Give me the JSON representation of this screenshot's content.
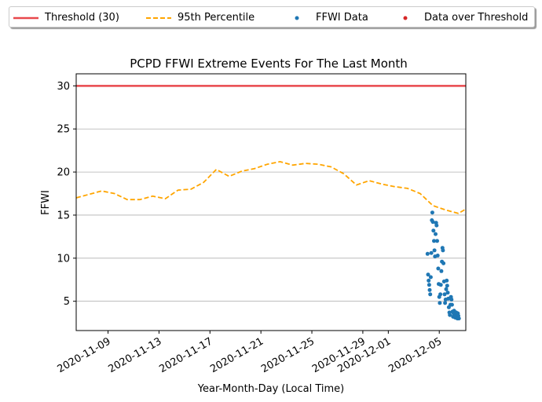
{
  "chart_data": {
    "type": "line",
    "title": "PCPD FFWI Extreme Events For The Last Month",
    "xlabel": "Year-Month-Day (Local Time)",
    "ylabel": "FFWI",
    "xlim": [
      "2020-11-06T12:00",
      "2020-12-07T02:00"
    ],
    "ylim": [
      1.6,
      31.4
    ],
    "yticks": [
      5,
      10,
      15,
      20,
      25,
      30
    ],
    "xticks": [
      "2020-11-09",
      "2020-11-13",
      "2020-11-17",
      "2020-11-21",
      "2020-11-25",
      "2020-11-29",
      "2020-12-01",
      "2020-12-05"
    ],
    "grid": "y",
    "legend": {
      "position": "top",
      "entries": [
        {
          "label": "Threshold (30)",
          "color": "#e8484c",
          "style": "solid-line"
        },
        {
          "label": "95th Percentile",
          "color": "#ffa500",
          "style": "dashed-line"
        },
        {
          "label": "FFWI Data",
          "color": "#1f77b4",
          "style": "dot"
        },
        {
          "label": "Data over Threshold",
          "color": "#d62728",
          "style": "dot"
        }
      ]
    },
    "threshold": {
      "name": "Threshold (30)",
      "value": 30,
      "color": "#e8484c"
    },
    "percentile95": {
      "name": "95th Percentile",
      "color": "#ffa500",
      "points": [
        [
          "2020-11-06T12:00",
          17.0
        ],
        [
          "2020-11-07T12:00",
          17.4
        ],
        [
          "2020-11-08T12:00",
          17.8
        ],
        [
          "2020-11-09T12:00",
          17.5
        ],
        [
          "2020-11-10T12:00",
          16.8
        ],
        [
          "2020-11-11T12:00",
          16.8
        ],
        [
          "2020-11-12T12:00",
          17.2
        ],
        [
          "2020-11-13T12:00",
          16.9
        ],
        [
          "2020-11-14T12:00",
          17.9
        ],
        [
          "2020-11-15T12:00",
          18.0
        ],
        [
          "2020-11-16T12:00",
          18.8
        ],
        [
          "2020-11-17T12:00",
          20.3
        ],
        [
          "2020-11-18T12:00",
          19.5
        ],
        [
          "2020-11-19T12:00",
          20.1
        ],
        [
          "2020-11-20T12:00",
          20.4
        ],
        [
          "2020-11-21T12:00",
          20.9
        ],
        [
          "2020-11-22T12:00",
          21.2
        ],
        [
          "2020-11-23T12:00",
          20.8
        ],
        [
          "2020-11-24T12:00",
          21.0
        ],
        [
          "2020-11-25T12:00",
          20.9
        ],
        [
          "2020-11-26T12:00",
          20.6
        ],
        [
          "2020-11-27T12:00",
          19.8
        ],
        [
          "2020-11-28T12:00",
          18.5
        ],
        [
          "2020-11-29T12:00",
          19.0
        ],
        [
          "2020-11-30T12:00",
          18.6
        ],
        [
          "2020-12-01T12:00",
          18.3
        ],
        [
          "2020-12-02T12:00",
          18.1
        ],
        [
          "2020-12-03T12:00",
          17.5
        ],
        [
          "2020-12-04T12:00",
          16.1
        ],
        [
          "2020-12-05T12:00",
          15.6
        ],
        [
          "2020-12-06T12:00",
          15.2
        ],
        [
          "2020-12-07T02:00",
          15.7
        ]
      ]
    },
    "ffwi_data": {
      "name": "FFWI Data",
      "color": "#1f77b4",
      "points": [
        [
          "2020-12-04T02:00",
          10.5
        ],
        [
          "2020-12-04T03:00",
          8.1
        ],
        [
          "2020-12-04T04:00",
          7.4
        ],
        [
          "2020-12-04T05:00",
          6.9
        ],
        [
          "2020-12-04T06:00",
          6.3
        ],
        [
          "2020-12-04T07:00",
          5.8
        ],
        [
          "2020-12-04T08:00",
          7.8
        ],
        [
          "2020-12-04T09:00",
          10.6
        ],
        [
          "2020-12-04T10:00",
          14.4
        ],
        [
          "2020-12-04T11:00",
          15.3
        ],
        [
          "2020-12-04T12:00",
          14.2
        ],
        [
          "2020-12-04T13:00",
          13.2
        ],
        [
          "2020-12-04T14:00",
          12.0
        ],
        [
          "2020-12-04T15:00",
          10.9
        ],
        [
          "2020-12-04T16:00",
          10.2
        ],
        [
          "2020-12-04T17:00",
          12.8
        ],
        [
          "2020-12-04T18:00",
          14.1
        ],
        [
          "2020-12-04T19:00",
          13.8
        ],
        [
          "2020-12-04T20:00",
          12.0
        ],
        [
          "2020-12-04T21:00",
          10.3
        ],
        [
          "2020-12-04T22:00",
          8.8
        ],
        [
          "2020-12-04T23:00",
          7.0
        ],
        [
          "2020-12-05T00:00",
          5.5
        ],
        [
          "2020-12-05T01:00",
          4.8
        ],
        [
          "2020-12-05T02:00",
          5.8
        ],
        [
          "2020-12-05T03:00",
          6.9
        ],
        [
          "2020-12-05T04:00",
          8.5
        ],
        [
          "2020-12-05T05:00",
          9.6
        ],
        [
          "2020-12-05T06:00",
          11.2
        ],
        [
          "2020-12-05T07:00",
          10.9
        ],
        [
          "2020-12-05T08:00",
          9.4
        ],
        [
          "2020-12-05T09:00",
          7.3
        ],
        [
          "2020-12-05T10:00",
          5.8
        ],
        [
          "2020-12-05T11:00",
          4.8
        ],
        [
          "2020-12-05T12:00",
          5.2
        ],
        [
          "2020-12-05T13:00",
          6.4
        ],
        [
          "2020-12-05T14:00",
          7.4
        ],
        [
          "2020-12-05T15:00",
          6.8
        ],
        [
          "2020-12-05T16:00",
          6.0
        ],
        [
          "2020-12-05T17:00",
          5.3
        ],
        [
          "2020-12-05T18:00",
          4.3
        ],
        [
          "2020-12-05T19:00",
          3.7
        ],
        [
          "2020-12-05T20:00",
          3.4
        ],
        [
          "2020-12-05T21:00",
          4.6
        ],
        [
          "2020-12-05T22:00",
          5.5
        ],
        [
          "2020-12-05T23:00",
          5.2
        ],
        [
          "2020-12-06T00:00",
          4.6
        ],
        [
          "2020-12-06T01:00",
          3.8
        ],
        [
          "2020-12-06T02:00",
          3.2
        ],
        [
          "2020-12-06T03:00",
          3.6
        ],
        [
          "2020-12-06T04:00",
          3.9
        ],
        [
          "2020-12-06T05:00",
          3.5
        ],
        [
          "2020-12-06T06:00",
          3.1
        ],
        [
          "2020-12-06T07:00",
          3.3
        ],
        [
          "2020-12-06T08:00",
          3.7
        ],
        [
          "2020-12-06T09:00",
          3.4
        ],
        [
          "2020-12-06T10:00",
          3.0
        ],
        [
          "2020-12-06T11:00",
          3.6
        ],
        [
          "2020-12-06T12:00",
          3.3
        ],
        [
          "2020-12-06T13:00",
          3.0
        ]
      ]
    },
    "data_over_threshold": {
      "name": "Data over Threshold",
      "color": "#d62728",
      "points": []
    }
  }
}
